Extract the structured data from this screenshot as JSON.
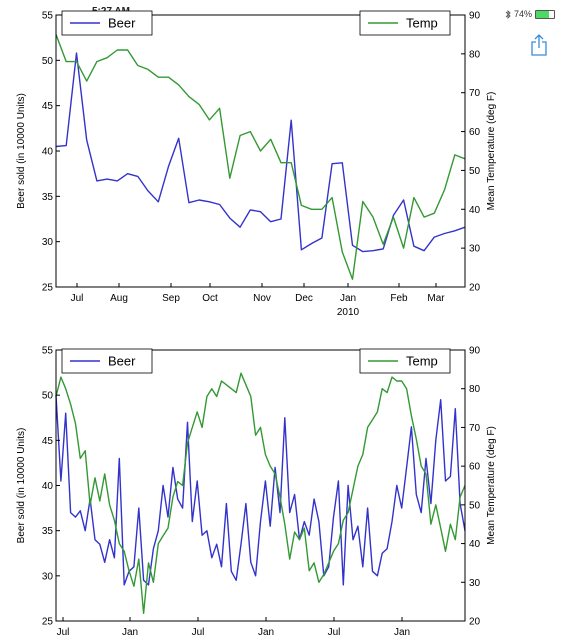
{
  "status_bar": {
    "time": "5:27 AM",
    "bluetooth_icon": "bluetooth-icon",
    "battery_text": "74%",
    "battery_level": 0.74,
    "battery_color": "#4cd964"
  },
  "toolbar": {
    "share_icon": "share-icon",
    "icon_color": "#3b8ad9"
  },
  "chart_data": [
    {
      "type": "line",
      "x_axis": {
        "tick_labels": [
          "Jul",
          "Aug",
          "Sep",
          "Oct",
          "Nov",
          "Dec",
          "Jan",
          "Feb",
          "Mar"
        ],
        "secondary_label": "2010",
        "xlim": [
          0,
          40
        ]
      },
      "y_axis_left": {
        "label": "Beer sold (in 10000 Units)",
        "ylim": [
          25,
          55
        ],
        "ticks": [
          25,
          30,
          35,
          40,
          45,
          50,
          55
        ]
      },
      "y_axis_right": {
        "label": "Mean Temperature (deg F)",
        "ylim": [
          20,
          90
        ],
        "ticks": [
          20,
          30,
          40,
          50,
          60,
          70,
          80,
          90
        ]
      },
      "legend": [
        {
          "name": "Beer",
          "position": "top-left"
        },
        {
          "name": "Temp",
          "position": "top-right"
        }
      ],
      "series": [
        {
          "name": "Beer",
          "axis": "left",
          "color": "#3333cc",
          "x": [
            0,
            1,
            2,
            3,
            4,
            5,
            6,
            7,
            8,
            9,
            10,
            11,
            12,
            13,
            14,
            15,
            16,
            17,
            18,
            19,
            20,
            21,
            22,
            23,
            24,
            25,
            26,
            27,
            28,
            29,
            30,
            31,
            32,
            33,
            34,
            35,
            36,
            37,
            38,
            39,
            40
          ],
          "y": [
            40.5,
            40.6,
            50.8,
            41.2,
            36.7,
            36.9,
            36.7,
            37.5,
            37.2,
            35.6,
            34.4,
            38.3,
            41.4,
            34.3,
            34.6,
            34.4,
            34.1,
            32.6,
            31.6,
            33.5,
            33.3,
            32.2,
            32.5,
            43.4,
            29.1,
            29.8,
            30.4,
            38.6,
            38.7,
            29.6,
            28.9,
            29.0,
            29.2,
            32.9,
            34.6,
            29.5,
            29.0,
            30.5,
            30.9,
            31.2,
            31.6
          ]
        },
        {
          "name": "Temp",
          "axis": "right",
          "color": "#339933",
          "x": [
            0,
            1,
            2,
            3,
            4,
            5,
            6,
            7,
            8,
            9,
            10,
            11,
            12,
            13,
            14,
            15,
            16,
            17,
            18,
            19,
            20,
            21,
            22,
            23,
            24,
            25,
            26,
            27,
            28,
            29,
            30,
            31,
            32,
            33,
            34,
            35,
            36,
            37,
            38,
            39,
            40
          ],
          "y": [
            85,
            78,
            78,
            73,
            78,
            79,
            81,
            81,
            77,
            76,
            74,
            74,
            72,
            69,
            67,
            63,
            66,
            48,
            59,
            60,
            55,
            58,
            52,
            52,
            41,
            40,
            40,
            43,
            29,
            22,
            42,
            38,
            31,
            38,
            30,
            43,
            38,
            39,
            45,
            54,
            53
          ]
        }
      ]
    },
    {
      "type": "line",
      "x_axis": {
        "tick_labels": [
          "Jul",
          "Jan",
          "Jul",
          "Jan",
          "Jul",
          "Jan"
        ],
        "xlim": [
          0,
          42
        ]
      },
      "y_axis_left": {
        "label": "Beer sold (in 10000 Units)",
        "ylim": [
          25,
          55
        ],
        "ticks": [
          25,
          30,
          35,
          40,
          45,
          50,
          55
        ]
      },
      "y_axis_right": {
        "label": "Mean Temperature (deg F)",
        "ylim": [
          20,
          90
        ],
        "ticks": [
          20,
          30,
          40,
          50,
          60,
          70,
          80,
          90
        ]
      },
      "legend": [
        {
          "name": "Beer",
          "position": "top-left"
        },
        {
          "name": "Temp",
          "position": "top-right"
        }
      ],
      "series": [
        {
          "name": "Beer",
          "axis": "left",
          "color": "#3333cc",
          "x": [
            0,
            0.5,
            1,
            1.5,
            2,
            2.5,
            3,
            3.5,
            4,
            4.5,
            5,
            5.5,
            6,
            6.5,
            7,
            7.5,
            8,
            8.5,
            9,
            9.5,
            10,
            10.5,
            11,
            11.5,
            12,
            12.5,
            13,
            13.5,
            14,
            14.5,
            15,
            15.5,
            16,
            16.5,
            17,
            17.5,
            18,
            18.5,
            19,
            19.5,
            20,
            20.5,
            21,
            21.5,
            22,
            22.5,
            23,
            23.5,
            24,
            24.5,
            25,
            25.5,
            26,
            26.5,
            27,
            27.5,
            28,
            28.5,
            29,
            29.5,
            30,
            30.5,
            31,
            31.5,
            32,
            32.5,
            33,
            33.5,
            34,
            34.5,
            35,
            35.5,
            36,
            36.5,
            37,
            37.5,
            38,
            38.5,
            39,
            39.5,
            40,
            40.5,
            41,
            41.5,
            42
          ],
          "y": [
            50.0,
            40.5,
            48.0,
            37.0,
            36.5,
            37.2,
            35.0,
            38.5,
            34.0,
            33.5,
            31.5,
            34.0,
            32.0,
            43.0,
            29.0,
            30.5,
            31.0,
            37.5,
            29.5,
            29.0,
            33.0,
            35.0,
            40.0,
            36.5,
            42.0,
            38.5,
            37.5,
            47.0,
            36.0,
            40.5,
            34.5,
            35.0,
            32.0,
            33.5,
            31.0,
            38.0,
            30.5,
            29.5,
            33.5,
            38.0,
            31.5,
            30.0,
            36.0,
            40.5,
            35.5,
            42.0,
            37.0,
            47.5,
            37.0,
            39.0,
            34.0,
            36.0,
            34.5,
            38.5,
            36.0,
            30.0,
            31.0,
            36.5,
            40.5,
            29.0,
            40.0,
            34.0,
            35.5,
            31.0,
            37.5,
            30.5,
            30.0,
            32.5,
            33.0,
            36.0,
            40.0,
            37.5,
            42.0,
            46.5,
            39.0,
            37.0,
            43.0,
            38.0,
            45.0,
            49.5,
            40.5,
            41.0,
            48.5,
            38.0,
            35.0
          ]
        },
        {
          "name": "Temp",
          "axis": "right",
          "color": "#339933",
          "x": [
            0,
            0.5,
            1,
            1.5,
            2,
            2.5,
            3,
            3.5,
            4,
            4.5,
            5,
            5.5,
            6,
            6.5,
            7,
            7.5,
            8,
            8.5,
            9,
            9.5,
            10,
            10.5,
            11,
            11.5,
            12,
            12.5,
            13,
            13.5,
            14,
            14.5,
            15,
            15.5,
            16,
            16.5,
            17,
            17.5,
            18,
            18.5,
            19,
            19.5,
            20,
            20.5,
            21,
            21.5,
            22,
            22.5,
            23,
            23.5,
            24,
            24.5,
            25,
            25.5,
            26,
            26.5,
            27,
            27.5,
            28,
            28.5,
            29,
            29.5,
            30,
            30.5,
            31,
            31.5,
            32,
            32.5,
            33,
            33.5,
            34,
            34.5,
            35,
            35.5,
            36,
            36.5,
            37,
            37.5,
            38,
            38.5,
            39,
            39.5,
            40,
            40.5,
            41,
            41.5,
            42
          ],
          "y": [
            78,
            83,
            80,
            76,
            71,
            62,
            64,
            50,
            57,
            51,
            58,
            50,
            46,
            40,
            38,
            33,
            29,
            36,
            22,
            35,
            30,
            40,
            42,
            44,
            52,
            56,
            55,
            66,
            70,
            74,
            70,
            78,
            80,
            78,
            82,
            81,
            80,
            79,
            84,
            81,
            78,
            68,
            70,
            63,
            60,
            58,
            52,
            45,
            36,
            43,
            41,
            44,
            33,
            35,
            30,
            32,
            35,
            38,
            40,
            46,
            48,
            54,
            60,
            63,
            70,
            72,
            74,
            80,
            79,
            83,
            82,
            82,
            80,
            73,
            67,
            60,
            58,
            45,
            50,
            44,
            38,
            45,
            41,
            52,
            55
          ]
        }
      ]
    }
  ]
}
